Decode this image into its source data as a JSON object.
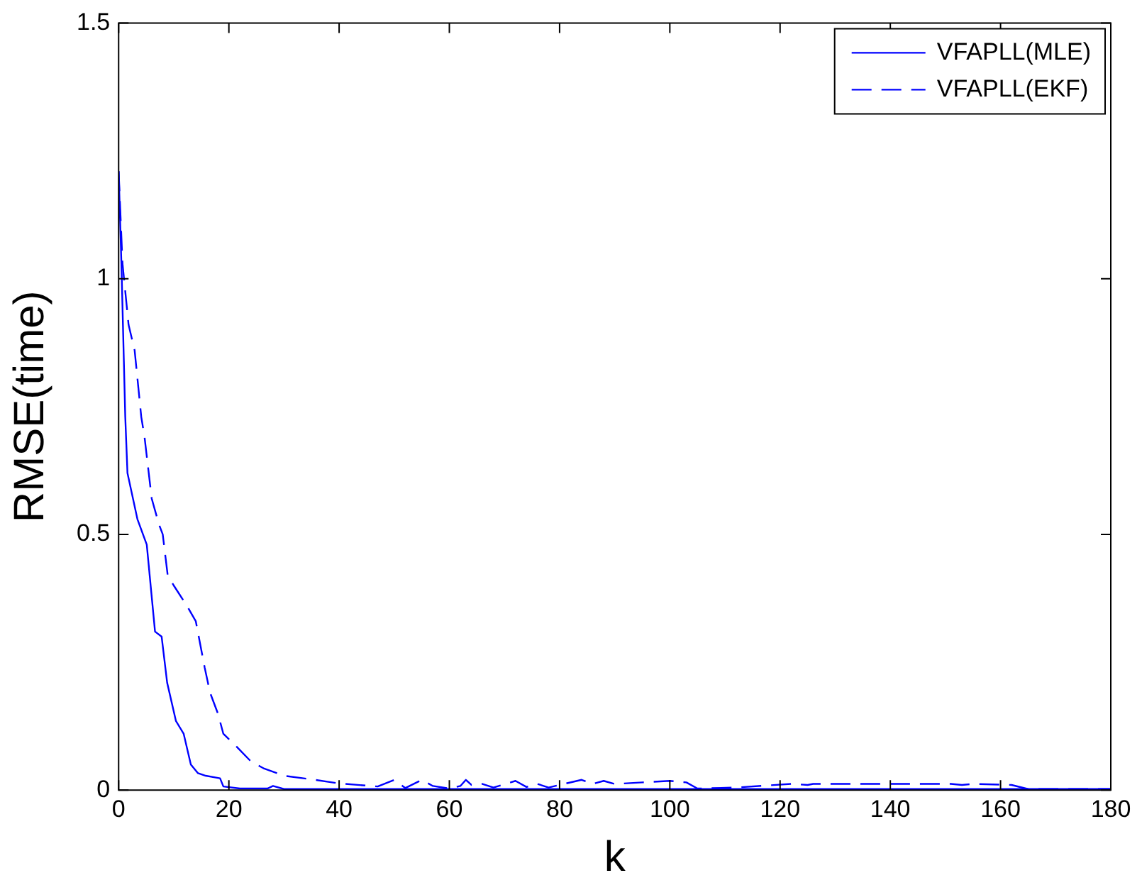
{
  "chart_data": {
    "type": "line",
    "xlabel": "k",
    "ylabel": "RMSE(time)",
    "xlim": [
      0,
      180
    ],
    "xticks": [
      0,
      20,
      40,
      60,
      80,
      100,
      120,
      140,
      160,
      180
    ],
    "ylim": [
      0,
      1.5
    ],
    "yticks": [
      0,
      0.5,
      1,
      1.5
    ],
    "grid": false,
    "legend": "top right",
    "marker": "none",
    "series": [
      {
        "name": "VFAPLL(MLE)",
        "color": "#0000ff",
        "line_style": "solid",
        "x": [
          0,
          0.5,
          1.2,
          1.6,
          3.4,
          5.1,
          6.6,
          7.8,
          8.8,
          10.4,
          11.8,
          13.1,
          14.4,
          15.8,
          18.4,
          19,
          22,
          27,
          28,
          30,
          40,
          60,
          80,
          100,
          120,
          140,
          160,
          180
        ],
        "values": [
          1.21,
          1.03,
          0.73,
          0.62,
          0.53,
          0.48,
          0.31,
          0.3,
          0.21,
          0.135,
          0.11,
          0.05,
          0.033,
          0.028,
          0.023,
          0.007,
          0.003,
          0.003,
          0.008,
          0.002,
          0.002,
          0.002,
          0.002,
          0.002,
          0.002,
          0.002,
          0.002,
          0.002
        ]
      },
      {
        "name": "VFAPLL(EKF)",
        "color": "#0000ff",
        "line_style": "dashed",
        "x": [
          0,
          0.7,
          1.8,
          2.9,
          4.1,
          4.7,
          6,
          7.3,
          8,
          8.9,
          10,
          12.4,
          14,
          15.6,
          16.6,
          18,
          19,
          21.2,
          24,
          26.4,
          30,
          35,
          40,
          47,
          50,
          52,
          55,
          57,
          60,
          62,
          63,
          64,
          66,
          68,
          72,
          74,
          76,
          78,
          80,
          84,
          86,
          88,
          90,
          95,
          100,
          103,
          105,
          112,
          122,
          125,
          126,
          134,
          151,
          153,
          155,
          162,
          165,
          180
        ],
        "values": [
          1.21,
          1.03,
          0.91,
          0.86,
          0.73,
          0.69,
          0.57,
          0.52,
          0.5,
          0.42,
          0.4,
          0.36,
          0.33,
          0.24,
          0.19,
          0.15,
          0.11,
          0.087,
          0.056,
          0.042,
          0.028,
          0.021,
          0.013,
          0.007,
          0.02,
          0.004,
          0.02,
          0.008,
          0.003,
          0.008,
          0.02,
          0.01,
          0.012,
          0.005,
          0.018,
          0.006,
          0.012,
          0.005,
          0.01,
          0.02,
          0.012,
          0.018,
          0.012,
          0.015,
          0.018,
          0.015,
          0.003,
          0.005,
          0.012,
          0.01,
          0.012,
          0.012,
          0.012,
          0.01,
          0.012,
          0.01,
          0.002,
          0.002
        ]
      }
    ]
  }
}
